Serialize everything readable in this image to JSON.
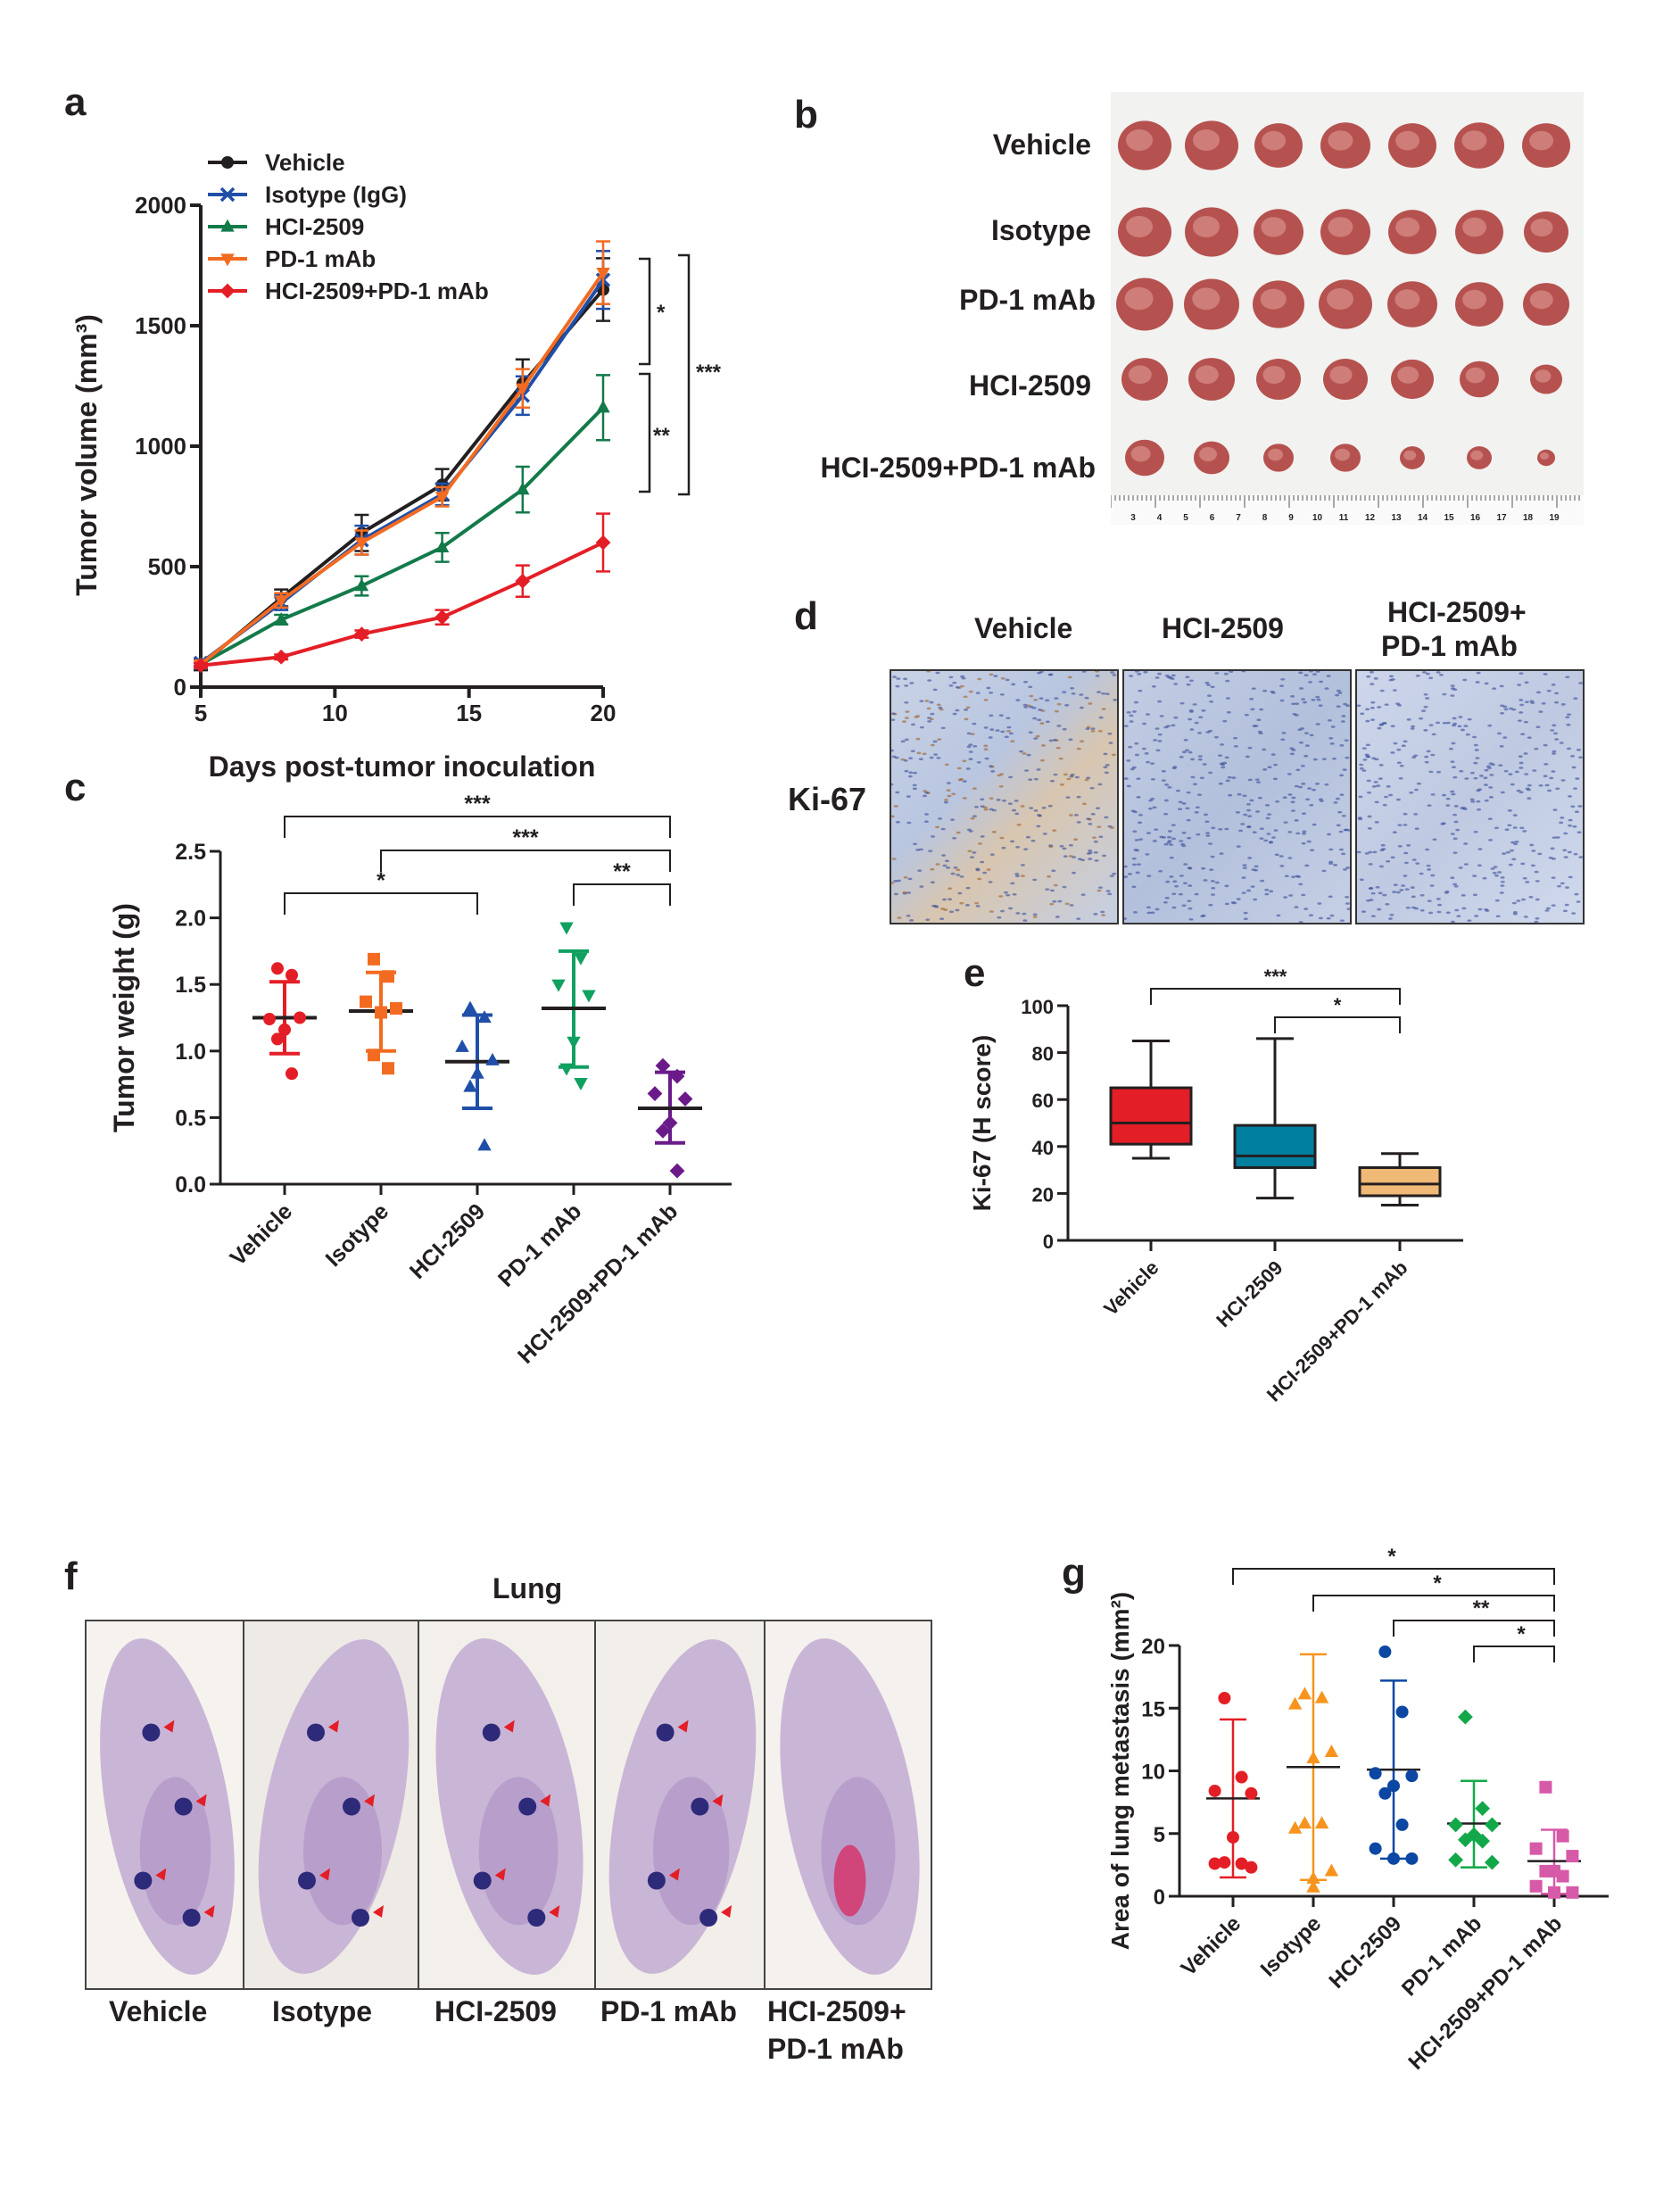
{
  "panel_letters": [
    "a",
    "b",
    "c",
    "d",
    "e",
    "f",
    "g"
  ],
  "colors": {
    "vehicle": "#231f20",
    "isotype": "#1f4fa8",
    "hci": "#137a4a",
    "pd1": "#f26b21",
    "combo": "#e41e26",
    "c_vehicle": "#e41e26",
    "c_isotype": "#f26b21",
    "c_hci": "#1f4fa8",
    "c_pd1": "#10a060",
    "c_combo": "#6b1a8a",
    "e_vehicle": "#e41e26",
    "e_hci": "#007f9f",
    "e_combo": "#f0b976",
    "g_vehicle": "#e41e26",
    "g_isotype": "#f7941d",
    "g_hci": "#0b47a3",
    "g_pd1": "#12a84a",
    "g_combo": "#d65aa8"
  },
  "panel_b": {
    "rows": [
      "Vehicle",
      "Isotype",
      "PD-1 mAb",
      "HCI-2509",
      "HCI-2509+PD-1 mAb"
    ],
    "ruler_labels": [
      "3",
      "4",
      "5",
      "6",
      "7",
      "8",
      "9",
      "10",
      "11",
      "12",
      "13",
      "14",
      "15",
      "16",
      "17",
      "18",
      "19"
    ]
  },
  "panel_d": {
    "columns": [
      "Vehicle",
      "HCI-2509",
      "HCI-2509+",
      "PD-1 mAb"
    ],
    "row_label": "Ki-67"
  },
  "panel_f": {
    "title": "Lung",
    "labels": [
      "Vehicle",
      "Isotype",
      "HCI-2509",
      "PD-1 mAb",
      "HCI-2509+",
      "PD-1 mAb"
    ]
  },
  "chart_data": [
    {
      "id": "a",
      "type": "line",
      "xlabel": "Days post-tumor inoculation",
      "ylabel": "Tumor volume (mm³)",
      "xlim": [
        5,
        20
      ],
      "ylim": [
        0,
        2000
      ],
      "xticks": [
        5,
        10,
        15,
        20
      ],
      "yticks": [
        0,
        500,
        1000,
        1500,
        2000
      ],
      "legend_placement": "top-left",
      "x": [
        5,
        8,
        11,
        14,
        17,
        20
      ],
      "series": [
        {
          "name": "Vehicle",
          "marker": "circle",
          "color": "#231f20",
          "values": [
            90,
            370,
            640,
            840,
            1260,
            1650
          ],
          "error": [
            20,
            35,
            75,
            65,
            100,
            130
          ]
        },
        {
          "name": "Isotype (IgG)",
          "marker": "x",
          "color": "#1f4fa8",
          "values": [
            100,
            350,
            610,
            800,
            1210,
            1690
          ],
          "error": [
            15,
            30,
            60,
            45,
            80,
            120
          ]
        },
        {
          "name": "HCI-2509",
          "marker": "triangle",
          "color": "#137a4a",
          "values": [
            95,
            280,
            420,
            580,
            820,
            1160
          ],
          "error": [
            15,
            20,
            40,
            60,
            95,
            135
          ]
        },
        {
          "name": "PD-1 mAb",
          "marker": "triangle-down",
          "color": "#f26b21",
          "values": [
            95,
            360,
            600,
            790,
            1240,
            1720
          ],
          "error": [
            15,
            30,
            50,
            40,
            80,
            130
          ]
        },
        {
          "name": "HCI-2509+PD-1 mAb",
          "marker": "diamond",
          "color": "#e41e26",
          "values": [
            90,
            125,
            220,
            290,
            440,
            600
          ],
          "error": [
            10,
            10,
            15,
            30,
            65,
            120
          ]
        }
      ],
      "significance": [
        "*",
        "**",
        "***"
      ]
    },
    {
      "id": "c",
      "type": "scatter",
      "ylabel": "Tumor weight (g)",
      "ylim": [
        0,
        2.5
      ],
      "yticks": [
        "0.0",
        "0.5",
        "1.0",
        "1.5",
        "2.0",
        "2.5"
      ],
      "categories": [
        "Vehicle",
        "Isotype",
        "HCI-2509",
        "PD-1 mAb",
        "HCI-2509+PD-1 mAb"
      ],
      "groups": [
        {
          "marker": "circle",
          "color": "#e41e26",
          "points": [
            1.62,
            1.57,
            1.24,
            1.25,
            1.16,
            1.09,
            0.83
          ],
          "mean": 1.25,
          "sd_upper": 1.52,
          "sd_lower": 0.98
        },
        {
          "marker": "square",
          "color": "#f26b21",
          "points": [
            1.69,
            1.56,
            1.37,
            1.32,
            1.29,
            0.97,
            0.87
          ],
          "mean": 1.3,
          "sd_upper": 1.59,
          "sd_lower": 1.0
        },
        {
          "marker": "triangle",
          "color": "#1f4fa8",
          "points": [
            1.32,
            1.25,
            1.03,
            0.93,
            0.83,
            0.73,
            0.29
          ],
          "mean": 0.92,
          "sd_upper": 1.27,
          "sd_lower": 0.57
        },
        {
          "marker": "triangle-down",
          "color": "#10a060",
          "points": [
            1.93,
            1.7,
            1.5,
            1.42,
            1.07,
            0.87,
            0.76
          ],
          "mean": 1.32,
          "sd_upper": 1.75,
          "sd_lower": 0.88
        },
        {
          "marker": "diamond",
          "color": "#6b1a8a",
          "points": [
            0.89,
            0.81,
            0.68,
            0.64,
            0.46,
            0.4,
            0.1
          ],
          "mean": 0.57,
          "sd_upper": 0.84,
          "sd_lower": 0.31
        }
      ],
      "comparisons": [
        {
          "from": 0,
          "to": 4,
          "label": "***"
        },
        {
          "from": 1,
          "to": 4,
          "label": "***"
        },
        {
          "from": 0,
          "to": 2,
          "label": "*"
        },
        {
          "from": 3,
          "to": 4,
          "label": "**"
        }
      ]
    },
    {
      "id": "e",
      "type": "box",
      "ylabel": "Ki-67 (H score)",
      "ylim": [
        0,
        100
      ],
      "yticks": [
        "0",
        "20",
        "40",
        "60",
        "80",
        "100"
      ],
      "categories": [
        "Vehicle",
        "HCI-2509",
        "HCI-2509+PD-1 mAb"
      ],
      "boxes": [
        {
          "color": "#e41e26",
          "min": 35,
          "q1": 41,
          "median": 50,
          "q3": 65,
          "max": 85
        },
        {
          "color": "#007f9f",
          "min": 18,
          "q1": 31,
          "median": 36,
          "q3": 49,
          "max": 86
        },
        {
          "color": "#f0b976",
          "min": 15,
          "q1": 19,
          "median": 24,
          "q3": 31,
          "max": 37
        }
      ],
      "comparisons": [
        {
          "from": 0,
          "to": 2,
          "label": "***"
        },
        {
          "from": 1,
          "to": 2,
          "label": "*"
        }
      ]
    },
    {
      "id": "g",
      "type": "scatter",
      "ylabel": "Area of lung metastasis (mm²)",
      "ylim": [
        0,
        20
      ],
      "yticks": [
        "0",
        "5",
        "10",
        "15",
        "20"
      ],
      "categories": [
        "Vehicle",
        "Isotype",
        "HCI-2509",
        "PD-1 mAb",
        "HCI-2509+PD-1 mAb"
      ],
      "groups": [
        {
          "marker": "circle",
          "color": "#e41e26",
          "points": [
            15.8,
            9.5,
            8.4,
            8.2,
            4.7,
            2.7,
            2.6,
            2.6,
            2.3
          ],
          "mean": 7.8,
          "sd_upper": 14.1,
          "sd_lower": 1.5
        },
        {
          "marker": "triangle",
          "color": "#f7941d",
          "points": [
            16.1,
            15.8,
            15.3,
            11.5,
            11.0,
            5.8,
            5.8,
            5.4,
            2.0,
            1.4,
            0.7
          ],
          "mean": 10.3,
          "sd_upper": 19.3,
          "sd_lower": 1.3
        },
        {
          "marker": "circle",
          "color": "#0b47a3",
          "points": [
            19.5,
            14.7,
            9.8,
            9.6,
            8.8,
            8.2,
            5.7,
            3.8,
            3.0,
            3.0
          ],
          "mean": 10.1,
          "sd_upper": 17.2,
          "sd_lower": 3.0
        },
        {
          "marker": "diamond",
          "color": "#12a84a",
          "points": [
            14.3,
            7.0,
            5.7,
            5.7,
            4.9,
            4.5,
            4.4,
            2.9,
            2.7
          ],
          "mean": 5.8,
          "sd_upper": 9.2,
          "sd_lower": 2.3
        },
        {
          "marker": "square",
          "color": "#d65aa8",
          "points": [
            8.7,
            4.8,
            3.8,
            3.2,
            2.0,
            2.0,
            1.6,
            0.8,
            0.3,
            0.3
          ],
          "mean": 2.8,
          "sd_upper": 5.3,
          "sd_lower": 0.2
        }
      ],
      "comparisons": [
        {
          "from": 0,
          "to": 4,
          "label": "*"
        },
        {
          "from": 1,
          "to": 4,
          "label": "*"
        },
        {
          "from": 2,
          "to": 4,
          "label": "**"
        },
        {
          "from": 3,
          "to": 4,
          "label": "*"
        }
      ]
    }
  ]
}
